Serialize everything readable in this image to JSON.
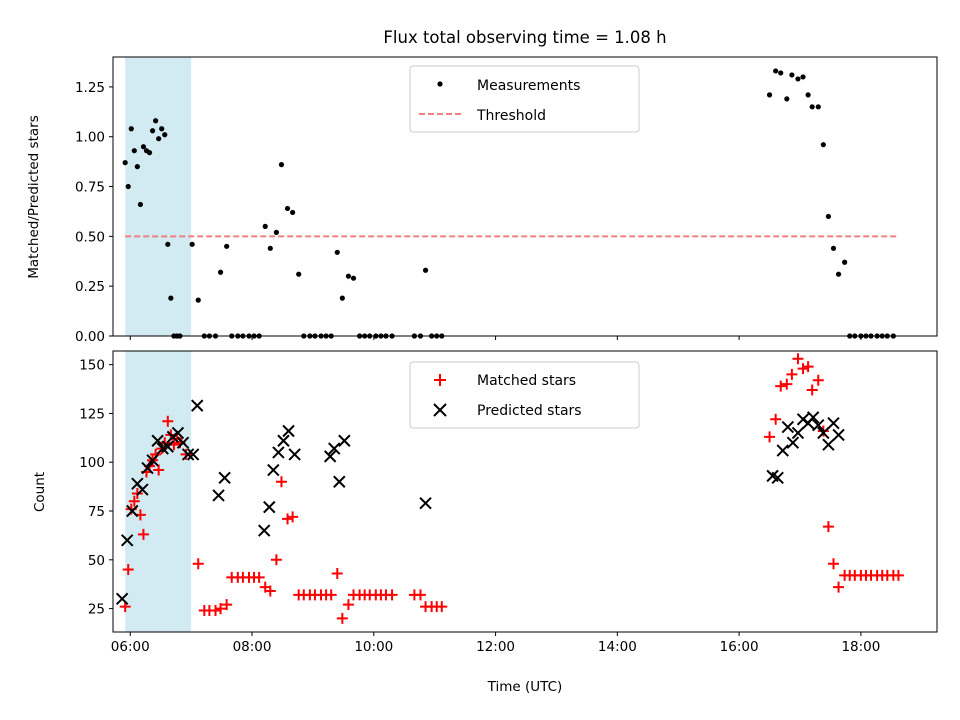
{
  "title": "Flux total observing time = 1.08 h",
  "colors": {
    "measurement": "#000000",
    "threshold": "#f08080",
    "shade": "#add8e6",
    "matched": "#ff0000",
    "predicted": "#000000"
  },
  "chart_data": [
    {
      "type": "scatter",
      "title": "Flux total observing time = 1.08 h",
      "xlabel": "",
      "ylabel": "Matched/Predicted stars",
      "xlim": [
        "05:43",
        "19:15"
      ],
      "ylim": [
        0,
        1.4
      ],
      "yticks": [
        "0.00",
        "0.25",
        "0.50",
        "0.75",
        "1.00",
        "1.25"
      ],
      "yticks_values": [
        0,
        0.25,
        0.5,
        0.75,
        1.0,
        1.25
      ],
      "shaded_span": [
        "05:55",
        "07:00"
      ],
      "legend": [
        "Measurements",
        "Threshold"
      ],
      "legend_position": "upper center",
      "threshold": {
        "name": "Threshold",
        "y": 0.5,
        "x_start": "05:55",
        "x_end": "18:35"
      },
      "series": [
        {
          "name": "Measurements",
          "points": [
            [
              "05:55",
              0.87
            ],
            [
              "05:58",
              0.75
            ],
            [
              "06:01",
              1.04
            ],
            [
              "06:04",
              0.93
            ],
            [
              "06:07",
              0.85
            ],
            [
              "06:10",
              0.66
            ],
            [
              "06:13",
              0.95
            ],
            [
              "06:16",
              0.93
            ],
            [
              "06:19",
              0.92
            ],
            [
              "06:22",
              1.03
            ],
            [
              "06:25",
              1.08
            ],
            [
              "06:28",
              0.99
            ],
            [
              "06:31",
              1.04
            ],
            [
              "06:34",
              1.01
            ],
            [
              "06:37",
              0.46
            ],
            [
              "06:40",
              0.19
            ],
            [
              "06:43",
              0
            ],
            [
              "06:46",
              0
            ],
            [
              "06:49",
              0
            ],
            [
              "07:01",
              0.46
            ],
            [
              "07:07",
              0.18
            ],
            [
              "07:13",
              0
            ],
            [
              "07:18",
              0
            ],
            [
              "07:24",
              0
            ],
            [
              "07:29",
              0.32
            ],
            [
              "07:35",
              0.45
            ],
            [
              "07:40",
              0
            ],
            [
              "07:46",
              0
            ],
            [
              "07:51",
              0
            ],
            [
              "07:57",
              0
            ],
            [
              "08:02",
              0
            ],
            [
              "08:07",
              0
            ],
            [
              "08:13",
              0.55
            ],
            [
              "08:18",
              0.44
            ],
            [
              "08:24",
              0.52
            ],
            [
              "08:29",
              0.86
            ],
            [
              "08:35",
              0.64
            ],
            [
              "08:40",
              0.62
            ],
            [
              "08:46",
              0.31
            ],
            [
              "08:51",
              0
            ],
            [
              "08:57",
              0
            ],
            [
              "09:02",
              0
            ],
            [
              "09:08",
              0
            ],
            [
              "09:13",
              0
            ],
            [
              "09:18",
              0
            ],
            [
              "09:24",
              0.42
            ],
            [
              "09:29",
              0.19
            ],
            [
              "09:35",
              0.3
            ],
            [
              "09:40",
              0.29
            ],
            [
              "09:46",
              0
            ],
            [
              "09:51",
              0
            ],
            [
              "09:56",
              0
            ],
            [
              "10:02",
              0
            ],
            [
              "10:07",
              0
            ],
            [
              "10:12",
              0
            ],
            [
              "10:18",
              0
            ],
            [
              "10:40",
              0
            ],
            [
              "10:46",
              0
            ],
            [
              "10:51",
              0.33
            ],
            [
              "10:57",
              0
            ],
            [
              "11:02",
              0
            ],
            [
              "11:07",
              0
            ],
            [
              "16:30",
              1.21
            ],
            [
              "16:36",
              1.33
            ],
            [
              "16:41",
              1.32
            ],
            [
              "16:47",
              1.19
            ],
            [
              "16:52",
              1.31
            ],
            [
              "16:58",
              1.29
            ],
            [
              "17:03",
              1.3
            ],
            [
              "17:08",
              1.21
            ],
            [
              "17:12",
              1.15
            ],
            [
              "17:18",
              1.15
            ],
            [
              "17:23",
              0.96
            ],
            [
              "17:28",
              0.6
            ],
            [
              "17:33",
              0.44
            ],
            [
              "17:38",
              0.31
            ],
            [
              "17:44",
              0.37
            ],
            [
              "17:49",
              0
            ],
            [
              "17:54",
              0
            ],
            [
              "18:00",
              0
            ],
            [
              "18:05",
              0
            ],
            [
              "18:10",
              0
            ],
            [
              "18:16",
              0
            ],
            [
              "18:21",
              0
            ],
            [
              "18:26",
              0
            ],
            [
              "18:32",
              0
            ]
          ]
        }
      ]
    },
    {
      "type": "scatter",
      "title": "",
      "xlabel": "Time (UTC)",
      "ylabel": "Count",
      "xlim": [
        "05:43",
        "19:15"
      ],
      "ylim": [
        13,
        157
      ],
      "xticks": [
        "06:00",
        "08:00",
        "10:00",
        "12:00",
        "14:00",
        "16:00",
        "18:00"
      ],
      "yticks": [
        "25",
        "50",
        "75",
        "100",
        "125",
        "150"
      ],
      "yticks_values": [
        25,
        50,
        75,
        100,
        125,
        150
      ],
      "shaded_span": [
        "05:55",
        "07:00"
      ],
      "legend": [
        "Matched stars",
        "Predicted stars"
      ],
      "legend_position": "upper center",
      "series": [
        {
          "name": "Matched stars",
          "marker": "plus",
          "points": [
            [
              "05:55",
              26
            ],
            [
              "05:58",
              45
            ],
            [
              "06:01",
              76
            ],
            [
              "06:04",
              80
            ],
            [
              "06:07",
              84
            ],
            [
              "06:10",
              73
            ],
            [
              "06:13",
              63
            ],
            [
              "06:16",
              95
            ],
            [
              "06:19",
              98
            ],
            [
              "06:22",
              101
            ],
            [
              "06:25",
              104
            ],
            [
              "06:28",
              96
            ],
            [
              "06:31",
              107
            ],
            [
              "06:34",
              110
            ],
            [
              "06:37",
              121
            ],
            [
              "06:40",
              114
            ],
            [
              "06:43",
              109
            ],
            [
              "06:46",
              112
            ],
            [
              "06:49",
              110
            ],
            [
              "06:55",
              104
            ],
            [
              "07:07",
              48
            ],
            [
              "07:13",
              24
            ],
            [
              "07:18",
              24
            ],
            [
              "07:24",
              24
            ],
            [
              "07:29",
              25
            ],
            [
              "07:35",
              27
            ],
            [
              "07:40",
              41
            ],
            [
              "07:46",
              41
            ],
            [
              "07:51",
              41
            ],
            [
              "07:57",
              41
            ],
            [
              "08:02",
              41
            ],
            [
              "08:07",
              41
            ],
            [
              "08:13",
              36
            ],
            [
              "08:18",
              34
            ],
            [
              "08:24",
              50
            ],
            [
              "08:29",
              90
            ],
            [
              "08:35",
              71
            ],
            [
              "08:40",
              72
            ],
            [
              "08:46",
              32
            ],
            [
              "08:51",
              32
            ],
            [
              "08:57",
              32
            ],
            [
              "09:02",
              32
            ],
            [
              "09:08",
              32
            ],
            [
              "09:13",
              32
            ],
            [
              "09:18",
              32
            ],
            [
              "09:24",
              43
            ],
            [
              "09:29",
              20
            ],
            [
              "09:35",
              27
            ],
            [
              "09:40",
              32
            ],
            [
              "09:46",
              32
            ],
            [
              "09:51",
              32
            ],
            [
              "09:56",
              32
            ],
            [
              "10:02",
              32
            ],
            [
              "10:07",
              32
            ],
            [
              "10:12",
              32
            ],
            [
              "10:18",
              32
            ],
            [
              "10:40",
              32
            ],
            [
              "10:46",
              32
            ],
            [
              "10:51",
              26
            ],
            [
              "10:57",
              26
            ],
            [
              "11:02",
              26
            ],
            [
              "11:07",
              26
            ],
            [
              "16:30",
              113
            ],
            [
              "16:36",
              122
            ],
            [
              "16:41",
              139
            ],
            [
              "16:47",
              140
            ],
            [
              "16:52",
              145
            ],
            [
              "16:58",
              153
            ],
            [
              "17:03",
              148
            ],
            [
              "17:08",
              149
            ],
            [
              "17:12",
              137
            ],
            [
              "17:18",
              142
            ],
            [
              "17:23",
              116
            ],
            [
              "17:28",
              67
            ],
            [
              "17:33",
              48
            ],
            [
              "17:38",
              36
            ],
            [
              "17:44",
              42
            ],
            [
              "17:49",
              42
            ],
            [
              "17:54",
              42
            ],
            [
              "18:00",
              42
            ],
            [
              "18:05",
              42
            ],
            [
              "18:10",
              42
            ],
            [
              "18:16",
              42
            ],
            [
              "18:21",
              42
            ],
            [
              "18:26",
              42
            ],
            [
              "18:32",
              42
            ],
            [
              "18:37",
              42
            ]
          ]
        },
        {
          "name": "Predicted stars",
          "marker": "x",
          "points": [
            [
              "05:52",
              30
            ],
            [
              "05:57",
              60
            ],
            [
              "06:02",
              75
            ],
            [
              "06:07",
              89
            ],
            [
              "06:12",
              86
            ],
            [
              "06:17",
              97
            ],
            [
              "06:22",
              101
            ],
            [
              "06:27",
              111
            ],
            [
              "06:32",
              107
            ],
            [
              "06:37",
              108
            ],
            [
              "06:42",
              113
            ],
            [
              "06:47",
              115
            ],
            [
              "06:52",
              110
            ],
            [
              "06:57",
              104
            ],
            [
              "07:02",
              104
            ],
            [
              "07:06",
              129
            ],
            [
              "07:27",
              83
            ],
            [
              "07:33",
              92
            ],
            [
              "08:12",
              65
            ],
            [
              "08:17",
              77
            ],
            [
              "08:21",
              96
            ],
            [
              "08:26",
              105
            ],
            [
              "08:31",
              111
            ],
            [
              "08:36",
              116
            ],
            [
              "08:42",
              104
            ],
            [
              "09:17",
              103
            ],
            [
              "09:21",
              107
            ],
            [
              "09:26",
              90
            ],
            [
              "09:31",
              111
            ],
            [
              "10:51",
              79
            ],
            [
              "16:33",
              93
            ],
            [
              "16:38",
              92
            ],
            [
              "16:43",
              106
            ],
            [
              "16:48",
              118
            ],
            [
              "16:53",
              110
            ],
            [
              "16:58",
              115
            ],
            [
              "17:03",
              122
            ],
            [
              "17:08",
              120
            ],
            [
              "17:13",
              123
            ],
            [
              "17:18",
              119
            ],
            [
              "17:23",
              115
            ],
            [
              "17:28",
              109
            ],
            [
              "17:33",
              120
            ],
            [
              "17:38",
              114
            ]
          ]
        }
      ]
    }
  ]
}
